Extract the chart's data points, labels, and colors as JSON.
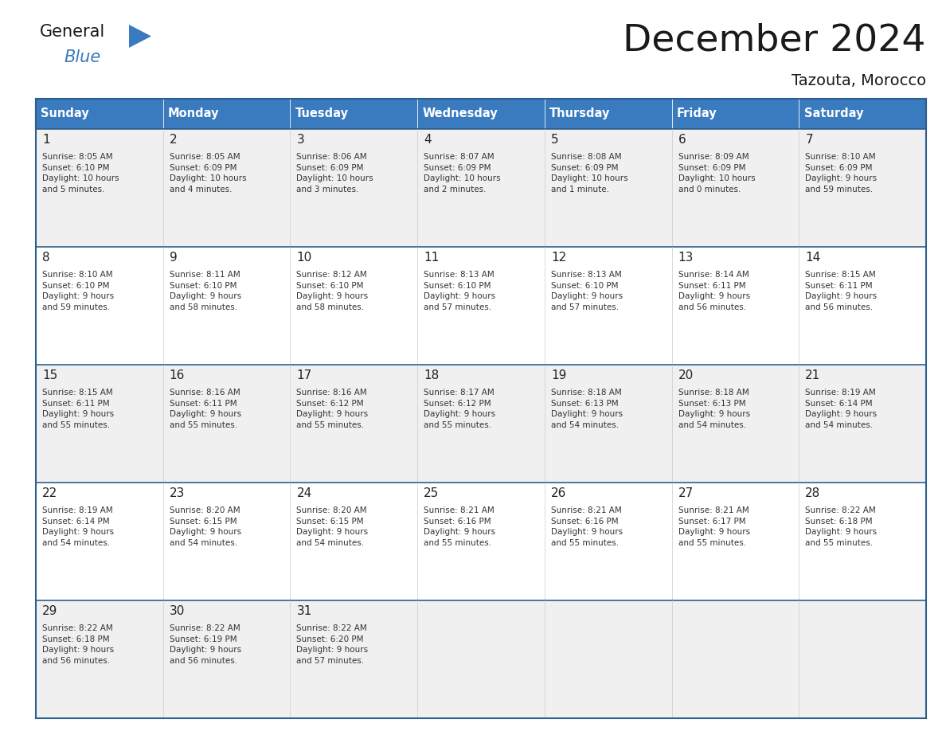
{
  "title": "December 2024",
  "subtitle": "Tazouta, Morocco",
  "days_of_week": [
    "Sunday",
    "Monday",
    "Tuesday",
    "Wednesday",
    "Thursday",
    "Friday",
    "Saturday"
  ],
  "header_bg": "#3a7abf",
  "header_text": "#ffffff",
  "cell_bg_odd": "#f0f0f0",
  "cell_bg_even": "#ffffff",
  "border_color": "#2d5f8e",
  "text_color": "#333333",
  "title_color": "#1a1a1a",
  "cal_data": [
    [
      {
        "day": 1,
        "sunrise": "8:05 AM",
        "sunset": "6:10 PM",
        "daylight": "10 hours\nand 5 minutes."
      },
      {
        "day": 2,
        "sunrise": "8:05 AM",
        "sunset": "6:09 PM",
        "daylight": "10 hours\nand 4 minutes."
      },
      {
        "day": 3,
        "sunrise": "8:06 AM",
        "sunset": "6:09 PM",
        "daylight": "10 hours\nand 3 minutes."
      },
      {
        "day": 4,
        "sunrise": "8:07 AM",
        "sunset": "6:09 PM",
        "daylight": "10 hours\nand 2 minutes."
      },
      {
        "day": 5,
        "sunrise": "8:08 AM",
        "sunset": "6:09 PM",
        "daylight": "10 hours\nand 1 minute."
      },
      {
        "day": 6,
        "sunrise": "8:09 AM",
        "sunset": "6:09 PM",
        "daylight": "10 hours\nand 0 minutes."
      },
      {
        "day": 7,
        "sunrise": "8:10 AM",
        "sunset": "6:09 PM",
        "daylight": "9 hours\nand 59 minutes."
      }
    ],
    [
      {
        "day": 8,
        "sunrise": "8:10 AM",
        "sunset": "6:10 PM",
        "daylight": "9 hours\nand 59 minutes."
      },
      {
        "day": 9,
        "sunrise": "8:11 AM",
        "sunset": "6:10 PM",
        "daylight": "9 hours\nand 58 minutes."
      },
      {
        "day": 10,
        "sunrise": "8:12 AM",
        "sunset": "6:10 PM",
        "daylight": "9 hours\nand 58 minutes."
      },
      {
        "day": 11,
        "sunrise": "8:13 AM",
        "sunset": "6:10 PM",
        "daylight": "9 hours\nand 57 minutes."
      },
      {
        "day": 12,
        "sunrise": "8:13 AM",
        "sunset": "6:10 PM",
        "daylight": "9 hours\nand 57 minutes."
      },
      {
        "day": 13,
        "sunrise": "8:14 AM",
        "sunset": "6:11 PM",
        "daylight": "9 hours\nand 56 minutes."
      },
      {
        "day": 14,
        "sunrise": "8:15 AM",
        "sunset": "6:11 PM",
        "daylight": "9 hours\nand 56 minutes."
      }
    ],
    [
      {
        "day": 15,
        "sunrise": "8:15 AM",
        "sunset": "6:11 PM",
        "daylight": "9 hours\nand 55 minutes."
      },
      {
        "day": 16,
        "sunrise": "8:16 AM",
        "sunset": "6:11 PM",
        "daylight": "9 hours\nand 55 minutes."
      },
      {
        "day": 17,
        "sunrise": "8:16 AM",
        "sunset": "6:12 PM",
        "daylight": "9 hours\nand 55 minutes."
      },
      {
        "day": 18,
        "sunrise": "8:17 AM",
        "sunset": "6:12 PM",
        "daylight": "9 hours\nand 55 minutes."
      },
      {
        "day": 19,
        "sunrise": "8:18 AM",
        "sunset": "6:13 PM",
        "daylight": "9 hours\nand 54 minutes."
      },
      {
        "day": 20,
        "sunrise": "8:18 AM",
        "sunset": "6:13 PM",
        "daylight": "9 hours\nand 54 minutes."
      },
      {
        "day": 21,
        "sunrise": "8:19 AM",
        "sunset": "6:14 PM",
        "daylight": "9 hours\nand 54 minutes."
      }
    ],
    [
      {
        "day": 22,
        "sunrise": "8:19 AM",
        "sunset": "6:14 PM",
        "daylight": "9 hours\nand 54 minutes."
      },
      {
        "day": 23,
        "sunrise": "8:20 AM",
        "sunset": "6:15 PM",
        "daylight": "9 hours\nand 54 minutes."
      },
      {
        "day": 24,
        "sunrise": "8:20 AM",
        "sunset": "6:15 PM",
        "daylight": "9 hours\nand 54 minutes."
      },
      {
        "day": 25,
        "sunrise": "8:21 AM",
        "sunset": "6:16 PM",
        "daylight": "9 hours\nand 55 minutes."
      },
      {
        "day": 26,
        "sunrise": "8:21 AM",
        "sunset": "6:16 PM",
        "daylight": "9 hours\nand 55 minutes."
      },
      {
        "day": 27,
        "sunrise": "8:21 AM",
        "sunset": "6:17 PM",
        "daylight": "9 hours\nand 55 minutes."
      },
      {
        "day": 28,
        "sunrise": "8:22 AM",
        "sunset": "6:18 PM",
        "daylight": "9 hours\nand 55 minutes."
      }
    ],
    [
      {
        "day": 29,
        "sunrise": "8:22 AM",
        "sunset": "6:18 PM",
        "daylight": "9 hours\nand 56 minutes."
      },
      {
        "day": 30,
        "sunrise": "8:22 AM",
        "sunset": "6:19 PM",
        "daylight": "9 hours\nand 56 minutes."
      },
      {
        "day": 31,
        "sunrise": "8:22 AM",
        "sunset": "6:20 PM",
        "daylight": "9 hours\nand 57 minutes."
      },
      null,
      null,
      null,
      null
    ]
  ],
  "logo_text1": "General",
  "logo_text2": "Blue",
  "logo_color1": "#1a1a1a",
  "logo_color2": "#3a7abf",
  "logo_triangle_color": "#3a7abf",
  "fig_width": 11.88,
  "fig_height": 9.18,
  "dpi": 100
}
